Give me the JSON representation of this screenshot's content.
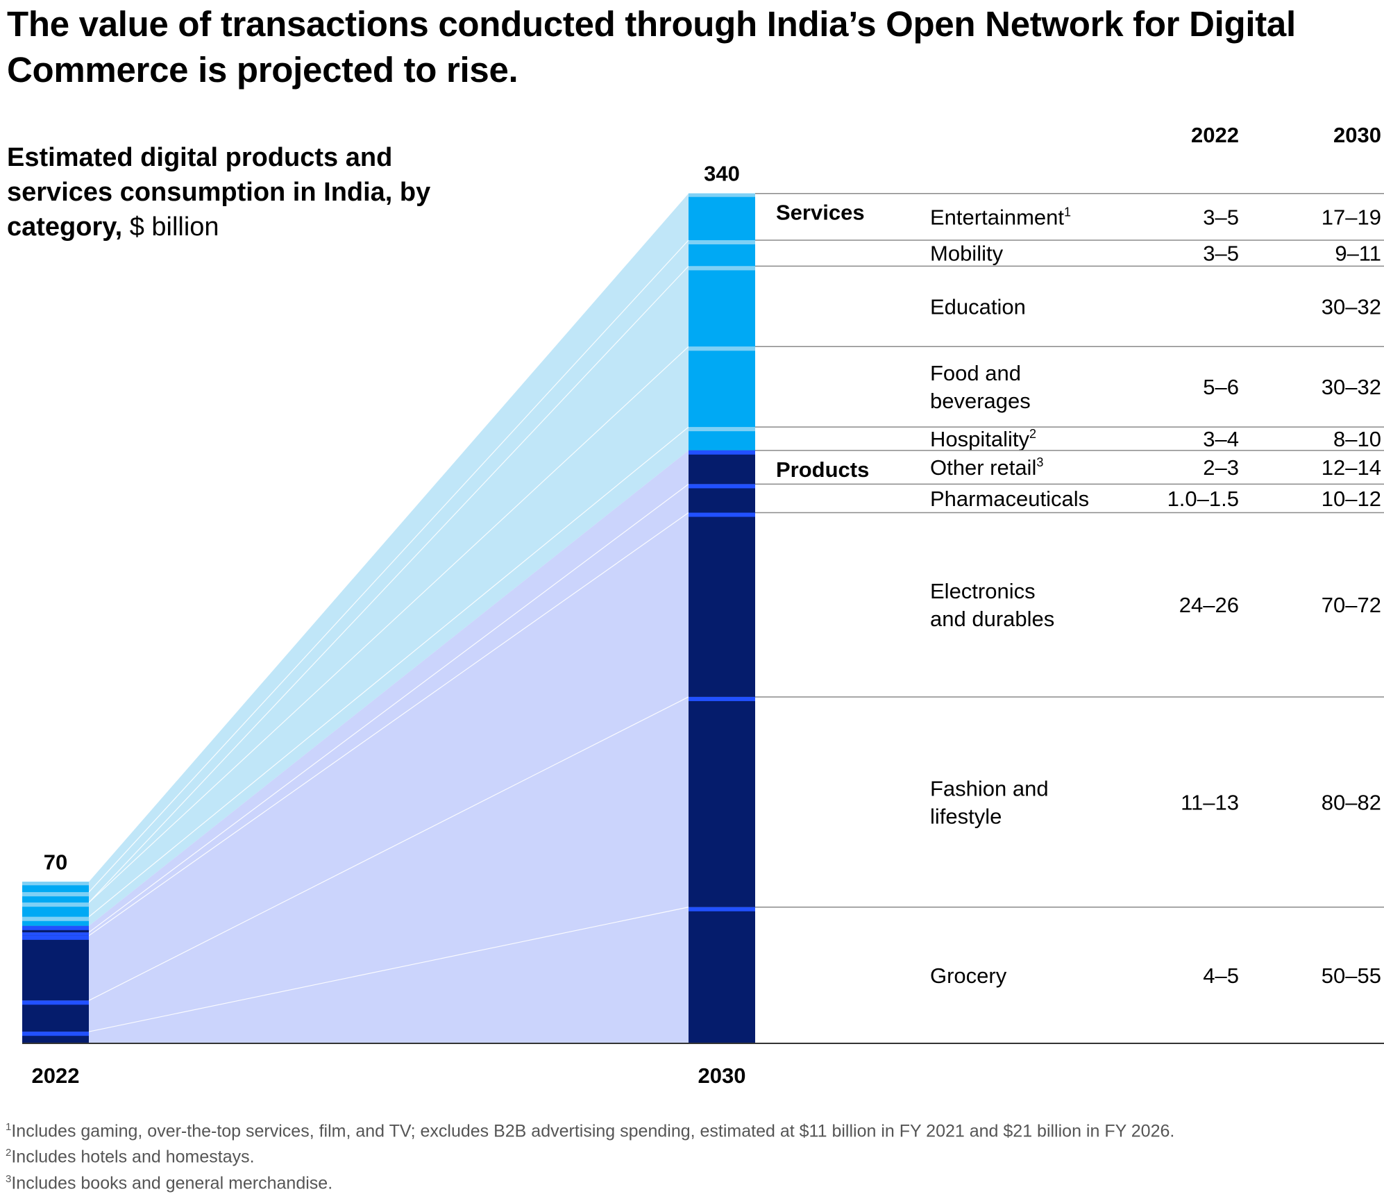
{
  "title": "The value of transactions conducted through India’s Open Network for Digital Commerce is projected to rise.",
  "subtitle": {
    "bold": "Estimated digital products and services consumption in India, by category,",
    "unit": "$ billion"
  },
  "chart_data": {
    "type": "bar",
    "stacked": true,
    "title": "Estimated digital products and services consumption in India, by category, $ billion",
    "categories": [
      "2022",
      "2030"
    ],
    "totals": [
      70,
      340
    ],
    "total_labels": [
      "70",
      "340"
    ],
    "ylim": [
      0,
      340
    ],
    "column_headers": [
      "2022",
      "2030"
    ],
    "groups": [
      {
        "label": "Services",
        "start_index": 0
      },
      {
        "label": "Products",
        "start_index": 5
      }
    ],
    "segments": [
      {
        "name": "Entertainment",
        "sup": "1",
        "group": "Services",
        "label_2022": "3–5",
        "label_2030": "17–19",
        "value_2022": 4,
        "value_2030": 18
      },
      {
        "name": "Mobility",
        "sup": "",
        "group": "Services",
        "label_2022": "3–5",
        "label_2030": "9–11",
        "value_2022": 4,
        "value_2030": 10
      },
      {
        "name": "Education",
        "sup": "",
        "group": "Services",
        "label_2022": "",
        "label_2030": "30–32",
        "value_2022": 0,
        "value_2030": 31
      },
      {
        "name": "Food and beverages",
        "sup": "",
        "group": "Services",
        "label_2022": "5–6",
        "label_2030": "30–32",
        "value_2022": 5.5,
        "value_2030": 31
      },
      {
        "name": "Hospitality",
        "sup": "2",
        "group": "Services",
        "label_2022": "3–4",
        "label_2030": "8–10",
        "value_2022": 3.5,
        "value_2030": 9
      },
      {
        "name": "Other retail",
        "sup": "3",
        "group": "Products",
        "label_2022": "2–3",
        "label_2030": "12–14",
        "value_2022": 2.5,
        "value_2030": 13
      },
      {
        "name": "Pharmaceuticals",
        "sup": "",
        "group": "Products",
        "label_2022": "1.0–1.5",
        "label_2030": "10–12",
        "value_2022": 1.25,
        "value_2030": 11
      },
      {
        "name": "Electronics and durables",
        "sup": "",
        "group": "Products",
        "label_2022": "24–26",
        "label_2030": "70–72",
        "value_2022": 25,
        "value_2030": 71
      },
      {
        "name": "Fashion and lifestyle",
        "sup": "",
        "group": "Products",
        "label_2022": "11–13",
        "label_2030": "80–82",
        "value_2022": 12,
        "value_2030": 81
      },
      {
        "name": "Grocery",
        "sup": "",
        "group": "Products",
        "label_2022": "4–5",
        "label_2030": "50–55",
        "value_2022": 4.5,
        "value_2030": 52.5
      }
    ],
    "group_label_lines": {
      "Entertainment": [
        "Entertainment"
      ],
      "Mobility": [
        "Mobility"
      ],
      "Education": [
        "Education"
      ],
      "Food and beverages": [
        "Food and",
        "beverages"
      ],
      "Hospitality": [
        "Hospitality"
      ],
      "Other retail": [
        "Other retail"
      ],
      "Pharmaceuticals": [
        "Pharmaceuticals"
      ],
      "Electronics and durables": [
        "Electronics",
        "and durables"
      ],
      "Fashion and lifestyle": [
        "Fashion and",
        "lifestyle"
      ],
      "Grocery": [
        "Grocery"
      ]
    },
    "colors": {
      "services_bar": "#00a9f4",
      "services_flow": "#c0e6f8",
      "services_sep": "#7fd0f5",
      "products_bar": "#051c6c",
      "products_flow": "#cbd4fc",
      "products_sep": "#2251ff"
    }
  },
  "footnotes": [
    {
      "sup": "1",
      "text": "Includes gaming, over-the-top services, film, and TV; excludes B2B advertising spending, estimated at $11 billion in FY 2021 and $21 billion in FY 2026."
    },
    {
      "sup": "2",
      "text": "Includes hotels and homestays."
    },
    {
      "sup": "3",
      "text": "Includes books and general merchandise."
    }
  ]
}
